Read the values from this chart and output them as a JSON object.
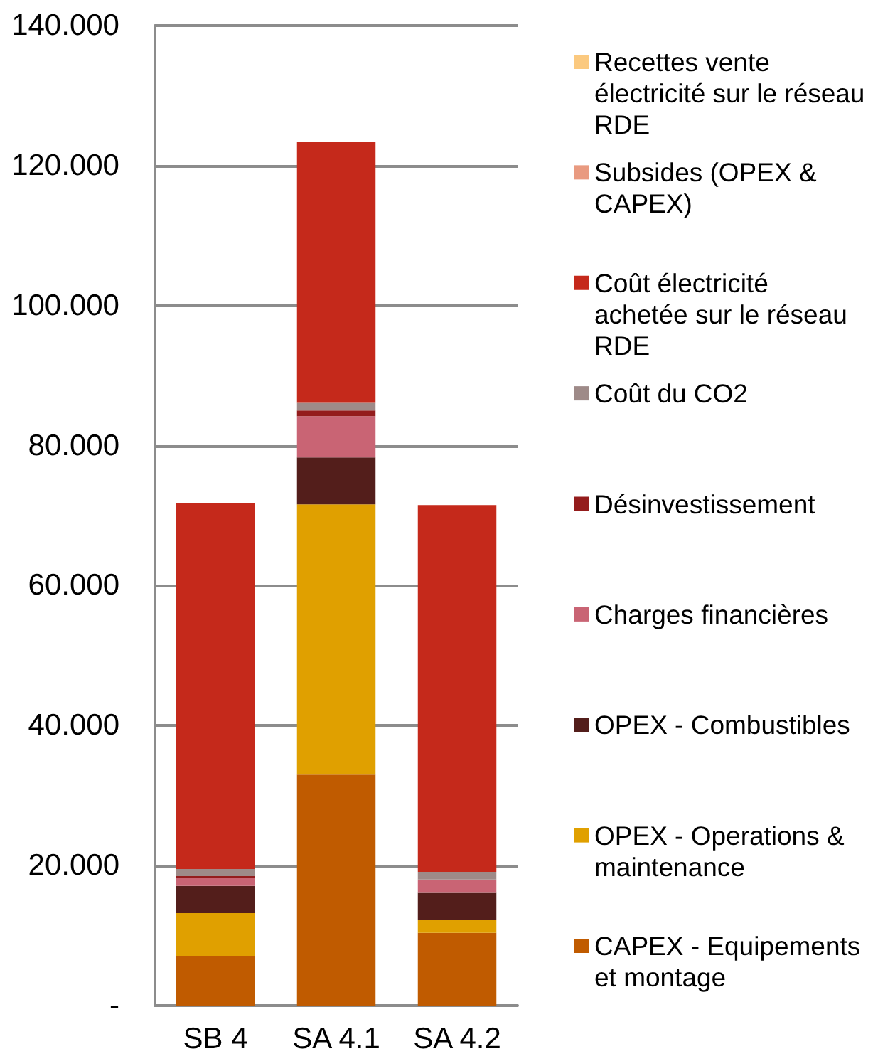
{
  "chart_data": {
    "type": "bar",
    "stacked": true,
    "categories": [
      "SB 4",
      "SA 4.1",
      "SA 4.2"
    ],
    "series": [
      {
        "name": "CAPEX - Equipements et montage",
        "color": "#c05b00",
        "values": [
          7.1,
          33,
          10.4
        ]
      },
      {
        "name": "OPEX - Operations & maintenance",
        "color": "#e0a000",
        "values": [
          6.1,
          38.6,
          1.8
        ]
      },
      {
        "name": "OPEX - Combustibles",
        "color": "#531e1b",
        "values": [
          3.9,
          6.7,
          3.9
        ]
      },
      {
        "name": "Charges financières",
        "color": "#c96474",
        "values": [
          1.2,
          5.9,
          1.9
        ]
      },
      {
        "name": "Désinvestissement",
        "color": "#941c1c",
        "values": [
          0.2,
          0.8,
          null
        ]
      },
      {
        "name": "Coût du CO2",
        "color": "#9e8a88",
        "values": [
          1.0,
          1.1,
          1.1
        ]
      },
      {
        "name": "Coût électricité achetée sur le réseau RDE",
        "color": "#c5291b",
        "values": [
          52.3,
          37.3,
          52.4
        ]
      },
      {
        "name": "Subsides (OPEX & CAPEX)",
        "color": "#e99a80",
        "values": [
          null,
          null,
          null
        ]
      },
      {
        "name": "Recettes vente électricité sur le réseau RDE",
        "color": "#fbc97f",
        "values": [
          null,
          null,
          null
        ]
      }
    ],
    "ylim": [
      0,
      140
    ],
    "yticks": [
      {
        "value": 0,
        "label": "-"
      },
      {
        "value": 20,
        "label": "20.000"
      },
      {
        "value": 40,
        "label": "40.000"
      },
      {
        "value": 60,
        "label": "60.000"
      },
      {
        "value": 80,
        "label": "80.000"
      },
      {
        "value": 100,
        "label": "100.000"
      },
      {
        "value": 120,
        "label": "120.000"
      },
      {
        "value": 140,
        "label": "140.000"
      }
    ],
    "grid": "y",
    "legend": "right"
  }
}
